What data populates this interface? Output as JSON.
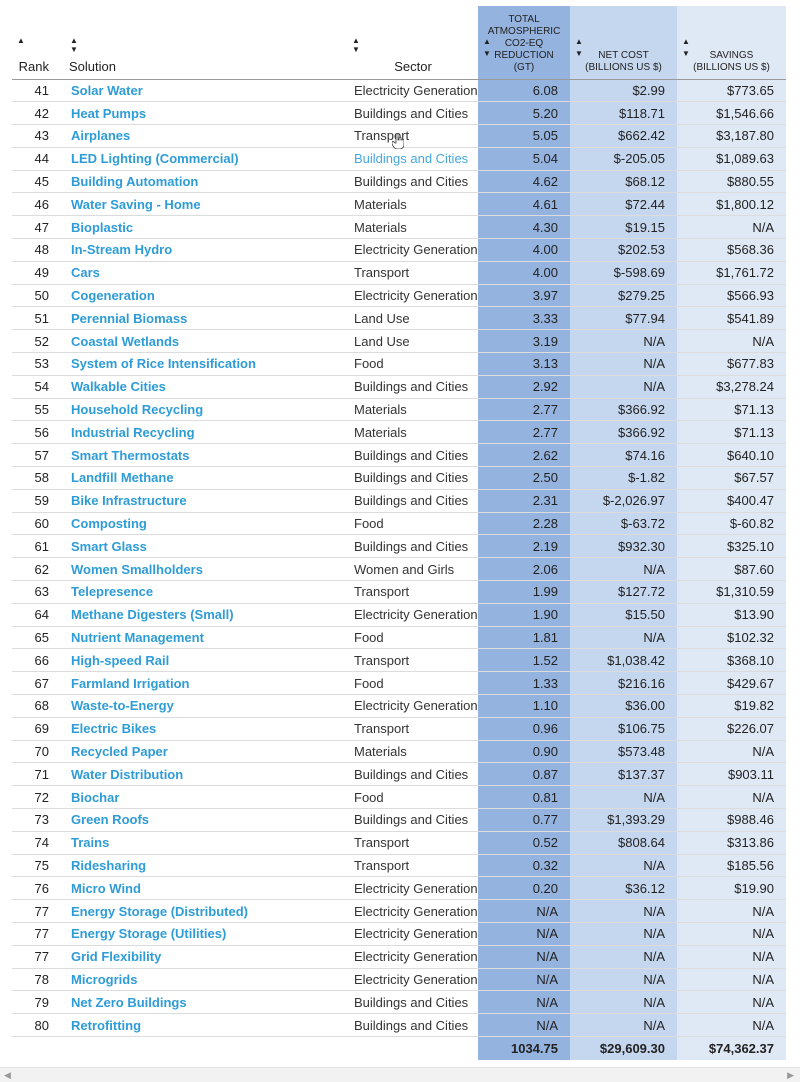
{
  "headers": {
    "rank": "Rank",
    "solution": "Solution",
    "sector": "Sector",
    "reduction": [
      "TOTAL",
      "ATMOSPHERIC",
      "CO2-EQ",
      "REDUCTION",
      "(GT)"
    ],
    "net_cost": [
      "NET COST",
      "(BILLIONS US $)"
    ],
    "savings": [
      "SAVINGS",
      "(BILLIONS US $)"
    ],
    "sort_asc_icon": "triangle-up",
    "sort_both_icon": "up-down-triangles"
  },
  "rows": [
    {
      "rank": "41",
      "solution": "Solar Water",
      "sector": "Electricity Generation",
      "reduction": "6.08",
      "net_cost": "$2.99",
      "savings": "$773.65"
    },
    {
      "rank": "42",
      "solution": "Heat Pumps",
      "sector": "Buildings and Cities",
      "reduction": "5.20",
      "net_cost": "$118.71",
      "savings": "$1,546.66"
    },
    {
      "rank": "43",
      "solution": "Airplanes",
      "sector": "Transport",
      "reduction": "5.05",
      "net_cost": "$662.42",
      "savings": "$3,187.80"
    },
    {
      "rank": "44",
      "solution": "LED Lighting (Commercial)",
      "sector": "Buildings and Cities",
      "reduction": "5.04",
      "net_cost": "$-205.05",
      "savings": "$1,089.63"
    },
    {
      "rank": "45",
      "solution": "Building Automation",
      "sector": "Buildings and Cities",
      "reduction": "4.62",
      "net_cost": "$68.12",
      "savings": "$880.55"
    },
    {
      "rank": "46",
      "solution": "Water Saving - Home",
      "sector": "Materials",
      "reduction": "4.61",
      "net_cost": "$72.44",
      "savings": "$1,800.12"
    },
    {
      "rank": "47",
      "solution": "Bioplastic",
      "sector": "Materials",
      "reduction": "4.30",
      "net_cost": "$19.15",
      "savings": "N/A"
    },
    {
      "rank": "48",
      "solution": "In-Stream Hydro",
      "sector": "Electricity Generation",
      "reduction": "4.00",
      "net_cost": "$202.53",
      "savings": "$568.36"
    },
    {
      "rank": "49",
      "solution": "Cars",
      "sector": "Transport",
      "reduction": "4.00",
      "net_cost": "$-598.69",
      "savings": "$1,761.72"
    },
    {
      "rank": "50",
      "solution": "Cogeneration",
      "sector": "Electricity Generation",
      "reduction": "3.97",
      "net_cost": "$279.25",
      "savings": "$566.93"
    },
    {
      "rank": "51",
      "solution": "Perennial Biomass",
      "sector": "Land Use",
      "reduction": "3.33",
      "net_cost": "$77.94",
      "savings": "$541.89"
    },
    {
      "rank": "52",
      "solution": "Coastal Wetlands",
      "sector": "Land Use",
      "reduction": "3.19",
      "net_cost": "N/A",
      "savings": "N/A"
    },
    {
      "rank": "53",
      "solution": "System of Rice Intensification",
      "sector": "Food",
      "reduction": "3.13",
      "net_cost": "N/A",
      "savings": "$677.83"
    },
    {
      "rank": "54",
      "solution": "Walkable Cities",
      "sector": "Buildings and Cities",
      "reduction": "2.92",
      "net_cost": "N/A",
      "savings": "$3,278.24"
    },
    {
      "rank": "55",
      "solution": "Household Recycling",
      "sector": "Materials",
      "reduction": "2.77",
      "net_cost": "$366.92",
      "savings": "$71.13"
    },
    {
      "rank": "56",
      "solution": "Industrial Recycling",
      "sector": "Materials",
      "reduction": "2.77",
      "net_cost": "$366.92",
      "savings": "$71.13"
    },
    {
      "rank": "57",
      "solution": "Smart Thermostats",
      "sector": "Buildings and Cities",
      "reduction": "2.62",
      "net_cost": "$74.16",
      "savings": "$640.10"
    },
    {
      "rank": "58",
      "solution": "Landfill Methane",
      "sector": "Buildings and Cities",
      "reduction": "2.50",
      "net_cost": "$-1.82",
      "savings": "$67.57"
    },
    {
      "rank": "59",
      "solution": "Bike Infrastructure",
      "sector": "Buildings and Cities",
      "reduction": "2.31",
      "net_cost": "$-2,026.97",
      "savings": "$400.47"
    },
    {
      "rank": "60",
      "solution": "Composting",
      "sector": "Food",
      "reduction": "2.28",
      "net_cost": "$-63.72",
      "savings": "$-60.82"
    },
    {
      "rank": "61",
      "solution": "Smart Glass",
      "sector": "Buildings and Cities",
      "reduction": "2.19",
      "net_cost": "$932.30",
      "savings": "$325.10"
    },
    {
      "rank": "62",
      "solution": "Women Smallholders",
      "sector": "Women and Girls",
      "reduction": "2.06",
      "net_cost": "N/A",
      "savings": "$87.60"
    },
    {
      "rank": "63",
      "solution": "Telepresence",
      "sector": "Transport",
      "reduction": "1.99",
      "net_cost": "$127.72",
      "savings": "$1,310.59"
    },
    {
      "rank": "64",
      "solution": "Methane Digesters (Small)",
      "sector": "Electricity Generation",
      "reduction": "1.90",
      "net_cost": "$15.50",
      "savings": "$13.90"
    },
    {
      "rank": "65",
      "solution": "Nutrient Management",
      "sector": "Food",
      "reduction": "1.81",
      "net_cost": "N/A",
      "savings": "$102.32"
    },
    {
      "rank": "66",
      "solution": "High-speed Rail",
      "sector": "Transport",
      "reduction": "1.52",
      "net_cost": "$1,038.42",
      "savings": "$368.10"
    },
    {
      "rank": "67",
      "solution": "Farmland Irrigation",
      "sector": "Food",
      "reduction": "1.33",
      "net_cost": "$216.16",
      "savings": "$429.67"
    },
    {
      "rank": "68",
      "solution": "Waste-to-Energy",
      "sector": "Electricity Generation",
      "reduction": "1.10",
      "net_cost": "$36.00",
      "savings": "$19.82"
    },
    {
      "rank": "69",
      "solution": "Electric Bikes",
      "sector": "Transport",
      "reduction": "0.96",
      "net_cost": "$106.75",
      "savings": "$226.07"
    },
    {
      "rank": "70",
      "solution": "Recycled Paper",
      "sector": "Materials",
      "reduction": "0.90",
      "net_cost": "$573.48",
      "savings": "N/A"
    },
    {
      "rank": "71",
      "solution": "Water Distribution",
      "sector": "Buildings and Cities",
      "reduction": "0.87",
      "net_cost": "$137.37",
      "savings": "$903.11"
    },
    {
      "rank": "72",
      "solution": "Biochar",
      "sector": "Food",
      "reduction": "0.81",
      "net_cost": "N/A",
      "savings": "N/A"
    },
    {
      "rank": "73",
      "solution": "Green Roofs",
      "sector": "Buildings and Cities",
      "reduction": "0.77",
      "net_cost": "$1,393.29",
      "savings": "$988.46"
    },
    {
      "rank": "74",
      "solution": "Trains",
      "sector": "Transport",
      "reduction": "0.52",
      "net_cost": "$808.64",
      "savings": "$313.86"
    },
    {
      "rank": "75",
      "solution": "Ridesharing",
      "sector": "Transport",
      "reduction": "0.32",
      "net_cost": "N/A",
      "savings": "$185.56"
    },
    {
      "rank": "76",
      "solution": "Micro Wind",
      "sector": "Electricity Generation",
      "reduction": "0.20",
      "net_cost": "$36.12",
      "savings": "$19.90"
    },
    {
      "rank": "77",
      "solution": "Energy Storage (Distributed)",
      "sector": "Electricity Generation",
      "reduction": "N/A",
      "net_cost": "N/A",
      "savings": "N/A"
    },
    {
      "rank": "77",
      "solution": "Energy Storage (Utilities)",
      "sector": "Electricity Generation",
      "reduction": "N/A",
      "net_cost": "N/A",
      "savings": "N/A"
    },
    {
      "rank": "77",
      "solution": "Grid Flexibility",
      "sector": "Electricity Generation",
      "reduction": "N/A",
      "net_cost": "N/A",
      "savings": "N/A"
    },
    {
      "rank": "78",
      "solution": "Microgrids",
      "sector": "Electricity Generation",
      "reduction": "N/A",
      "net_cost": "N/A",
      "savings": "N/A"
    },
    {
      "rank": "79",
      "solution": "Net Zero Buildings",
      "sector": "Buildings and Cities",
      "reduction": "N/A",
      "net_cost": "N/A",
      "savings": "N/A"
    },
    {
      "rank": "80",
      "solution": "Retrofitting",
      "sector": "Buildings and Cities",
      "reduction": "N/A",
      "net_cost": "N/A",
      "savings": "N/A"
    }
  ],
  "totals": {
    "reduction": "1034.75",
    "net_cost": "$29,609.30",
    "savings": "$74,362.37"
  },
  "hover_row_index": 3,
  "colors": {
    "link": "#2e9cd7",
    "reduction_bg": "#95b3df",
    "net_cost_bg": "#c5d7ef",
    "savings_bg": "#dfe9f6"
  },
  "scrollbar": {
    "left_arrow_icon": "triangle-left",
    "right_arrow_icon": "triangle-right"
  }
}
